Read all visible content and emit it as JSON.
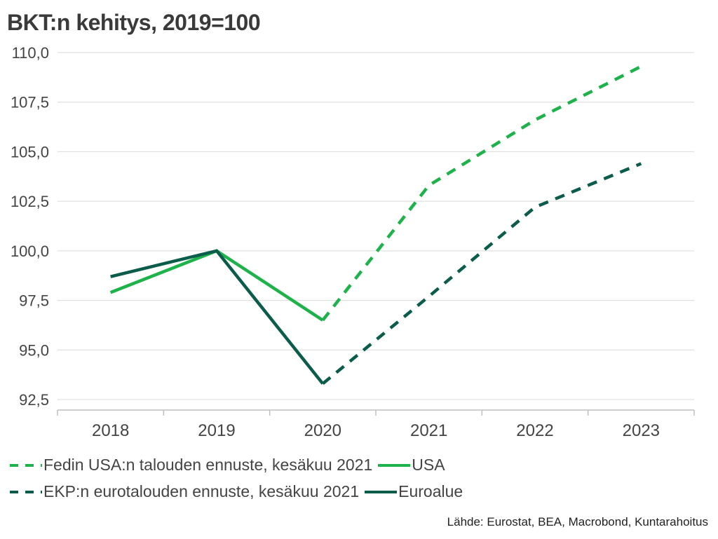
{
  "title": "BKT:n kehitys, 2019=100",
  "source": "Lähde: Eurostat, BEA, Macrobond, Kuntarahoitus",
  "colors": {
    "usa": "#1db34a",
    "euro": "#0b5c4a",
    "grid": "#d9d9d9",
    "axis": "#bfbfbf"
  },
  "chart_data": {
    "type": "line",
    "categories": [
      "2018",
      "2019",
      "2020",
      "2021",
      "2022",
      "2023"
    ],
    "ylim": [
      92.5,
      110.0
    ],
    "y_ticks": [
      "92,5",
      "95,0",
      "97,5",
      "100,0",
      "102,5",
      "105,0",
      "107,5",
      "110,0"
    ],
    "grid": true,
    "legend_position": "bottom",
    "series": [
      {
        "name": "Fedin USA:n talouden ennuste, kesäkuu 2021",
        "style": "dashed",
        "color_key": "usa",
        "values": [
          null,
          null,
          96.5,
          103.3,
          106.6,
          109.3
        ]
      },
      {
        "name": "USA",
        "style": "solid",
        "color_key": "usa",
        "values": [
          97.9,
          100.0,
          96.5,
          null,
          null,
          null
        ]
      },
      {
        "name": "EKP:n eurotalouden ennuste, kesäkuu 2021",
        "style": "dashed",
        "color_key": "euro",
        "values": [
          null,
          null,
          93.3,
          97.7,
          102.2,
          104.4
        ]
      },
      {
        "name": "Euroalue",
        "style": "solid",
        "color_key": "euro",
        "values": [
          98.7,
          100.0,
          93.3,
          null,
          null,
          null
        ]
      }
    ]
  }
}
